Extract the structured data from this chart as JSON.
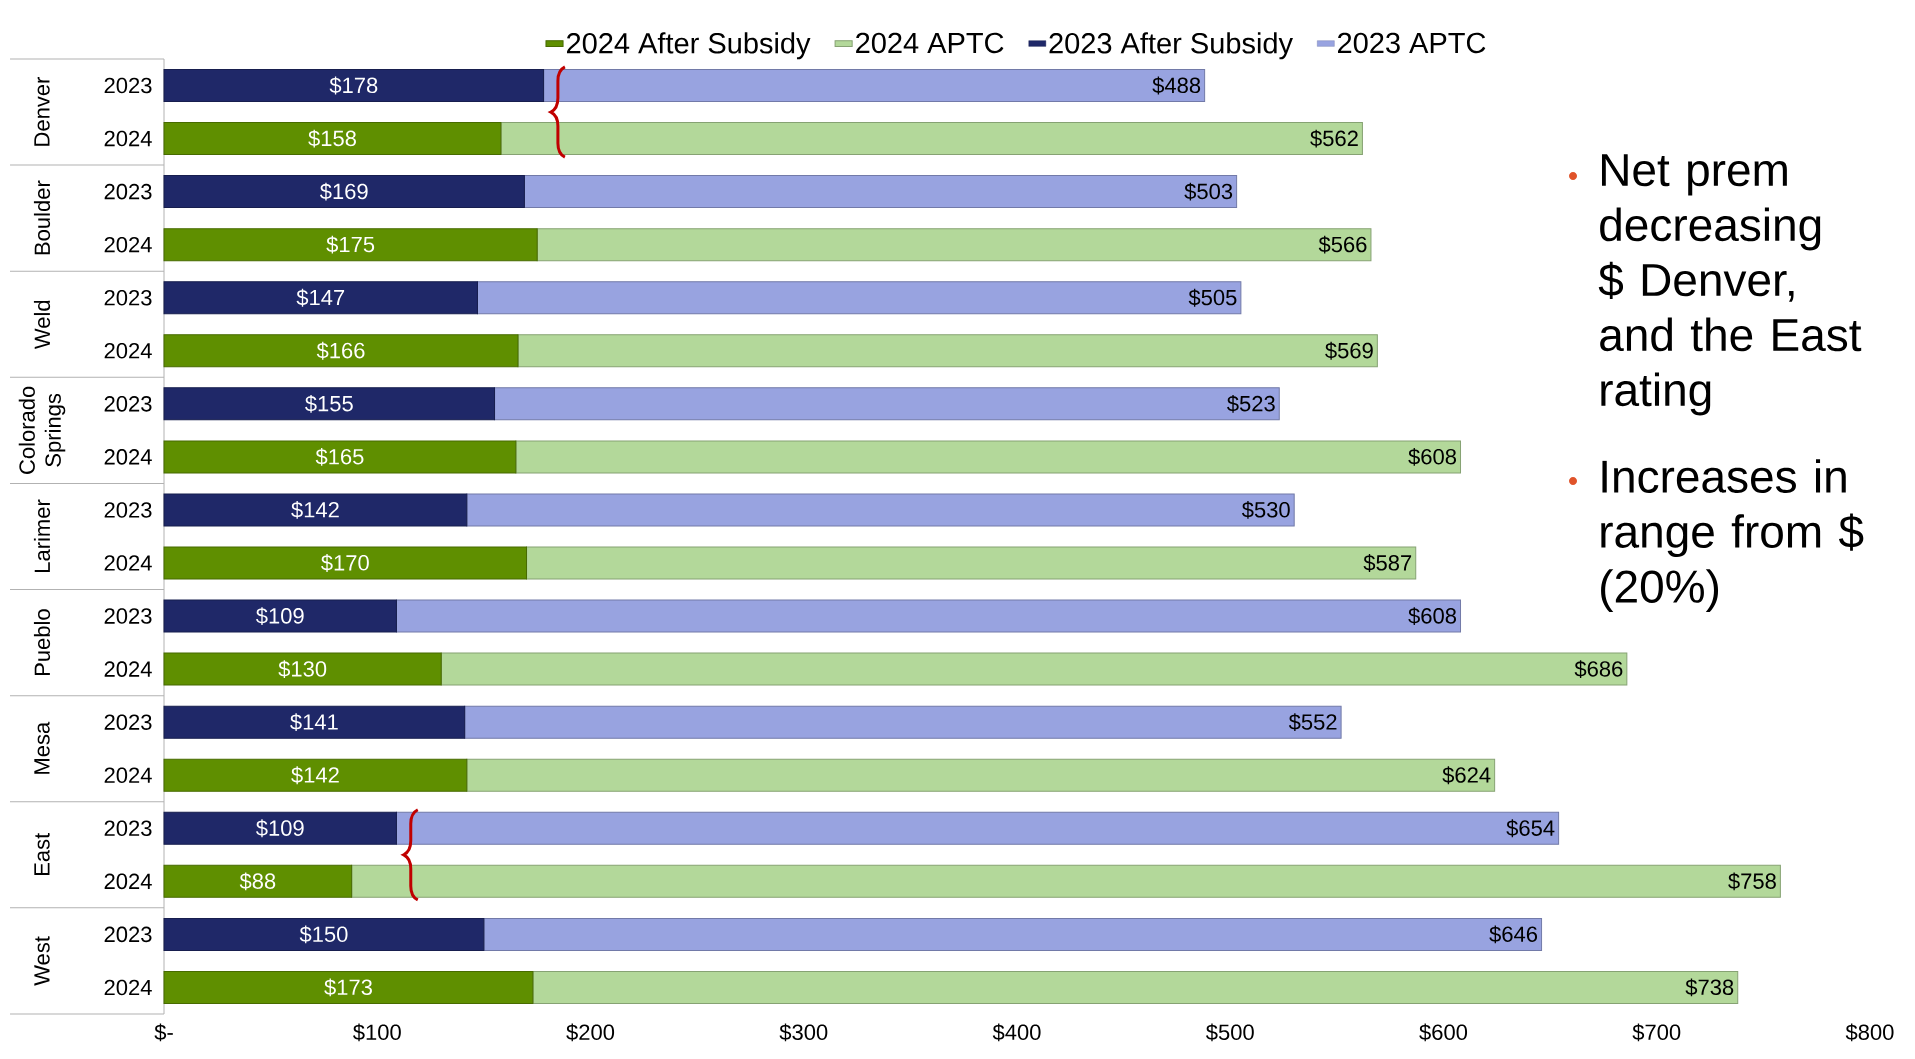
{
  "chart_data": {
    "type": "bar",
    "orientation": "horizontal",
    "stacked": true,
    "legend": "top",
    "categories": [
      "2023",
      "2024",
      "2023",
      "2024",
      "2023",
      "2024",
      "2023",
      "2024",
      "2023",
      "2024",
      "2023",
      "2024",
      "2023",
      "2024",
      "2023",
      "2024",
      "2023",
      "2024"
    ],
    "series": [
      {
        "name": "2024 After Subsidy",
        "color": "#5f8f00",
        "values": [
          null,
          158,
          null,
          175,
          null,
          166,
          null,
          165,
          null,
          170,
          null,
          130,
          null,
          142,
          null,
          88,
          null,
          173
        ],
        "value_labels": [
          null,
          "$158",
          null,
          "$175",
          null,
          "$166",
          null,
          "$165",
          null,
          "$170",
          null,
          "$130",
          null,
          "$142",
          null,
          "$88",
          null,
          "$173"
        ]
      },
      {
        "name": "2024 APTC",
        "color": "#b3d89a",
        "values": [
          null,
          404,
          null,
          391,
          null,
          403,
          null,
          443,
          null,
          417,
          null,
          556,
          null,
          482,
          null,
          670,
          null,
          565
        ]
      },
      {
        "name": "2023 After Subsidy",
        "color": "#1f2868",
        "values": [
          178,
          null,
          169,
          null,
          147,
          null,
          155,
          null,
          142,
          null,
          109,
          null,
          141,
          null,
          109,
          null,
          150,
          null
        ],
        "value_labels": [
          "$178",
          null,
          "$169",
          null,
          "$147",
          null,
          "$155",
          null,
          "$142",
          null,
          "$109",
          null,
          "$141",
          null,
          "$109",
          null,
          "$150",
          null
        ]
      },
      {
        "name": "2023 APTC",
        "color": "#98a3e0",
        "values": [
          310,
          null,
          334,
          null,
          358,
          null,
          368,
          null,
          388,
          null,
          499,
          null,
          411,
          null,
          545,
          null,
          496,
          null
        ]
      }
    ],
    "totals": [
      "$488",
      "$562",
      "$503",
      "$566",
      "$505",
      "$569",
      "$523",
      "$608",
      "$530",
      "$587",
      "$608",
      "$686",
      "$552",
      "$624",
      "$654",
      "$758",
      "$646",
      "$738"
    ],
    "xlim": [
      0,
      800
    ],
    "xticks": [
      {
        "value": 0,
        "label": "$-"
      },
      {
        "value": 100,
        "label": "$100"
      },
      {
        "value": 200,
        "label": "$200"
      },
      {
        "value": 300,
        "label": "$300"
      },
      {
        "value": 400,
        "label": "$400"
      },
      {
        "value": 500,
        "label": "$500"
      },
      {
        "value": 600,
        "label": "$600"
      },
      {
        "value": 700,
        "label": "$700"
      },
      {
        "value": 800,
        "label": "$800"
      }
    ],
    "annotations": [
      "Denver",
      "Boulder",
      "Weld",
      "Colorado Springs",
      "Larimer",
      "Pueblo",
      "Mesa",
      "East",
      "West",
      "Net prem decreasing $ Denver, and the East rating",
      "Increases in range from $ (20%)"
    ]
  }
}
